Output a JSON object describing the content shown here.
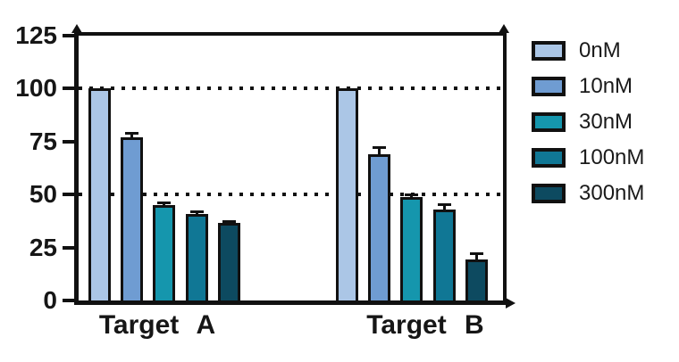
{
  "chart_data": {
    "type": "bar",
    "title": "",
    "categories": [
      "Target A",
      "Target B"
    ],
    "series": [
      {
        "name": "0nM",
        "color": "#abc6e6",
        "values": [
          100,
          100
        ],
        "errors": [
          0,
          0
        ]
      },
      {
        "name": "10nM",
        "color": "#6f9cd2",
        "values": [
          77,
          69
        ],
        "errors": [
          2,
          3
        ]
      },
      {
        "name": "30nM",
        "color": "#1596ad",
        "values": [
          45,
          49
        ],
        "errors": [
          1,
          1
        ]
      },
      {
        "name": "100nM",
        "color": "#107795",
        "values": [
          41,
          43
        ],
        "errors": [
          1,
          2.3
        ]
      },
      {
        "name": "300nM",
        "color": "#0d4a60",
        "values": [
          36.5,
          19.5
        ],
        "errors": [
          0.8,
          2.7
        ]
      }
    ],
    "xlabel": "",
    "ylabel": "",
    "ylim": [
      0,
      125
    ],
    "yticks": [
      0,
      25,
      50,
      75,
      100,
      125
    ],
    "gridlines": [
      50,
      100
    ],
    "grid_style": "dotted",
    "legend_position": "right",
    "axis_color": "#111111",
    "background": "#ffffff"
  }
}
